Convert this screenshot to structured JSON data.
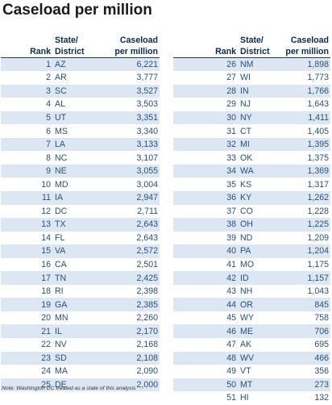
{
  "title": "Caseload per million",
  "headers": {
    "rank": "Rank",
    "state_line1": "State/",
    "state_line2": "District",
    "value_line1": "Caseload",
    "value_line2": "per million"
  },
  "rows_left": [
    {
      "rank": "1",
      "state": "AZ",
      "value": "6,221"
    },
    {
      "rank": "2",
      "state": "AR",
      "value": "3,777"
    },
    {
      "rank": "3",
      "state": "SC",
      "value": "3,527"
    },
    {
      "rank": "4",
      "state": "AL",
      "value": "3,503"
    },
    {
      "rank": "5",
      "state": "UT",
      "value": "3,351"
    },
    {
      "rank": "6",
      "state": "MS",
      "value": "3,340"
    },
    {
      "rank": "7",
      "state": "LA",
      "value": "3,133"
    },
    {
      "rank": "8",
      "state": "NC",
      "value": "3,107"
    },
    {
      "rank": "9",
      "state": "NE",
      "value": "3,055"
    },
    {
      "rank": "10",
      "state": "MD",
      "value": "3,004"
    },
    {
      "rank": "11",
      "state": "IA",
      "value": "2,947"
    },
    {
      "rank": "12",
      "state": "DC",
      "value": "2,711"
    },
    {
      "rank": "13",
      "state": "TX",
      "value": "2,643"
    },
    {
      "rank": "14",
      "state": "FL",
      "value": "2,643"
    },
    {
      "rank": "15",
      "state": "VA",
      "value": "2,572"
    },
    {
      "rank": "16",
      "state": "CA",
      "value": "2,501"
    },
    {
      "rank": "17",
      "state": "TN",
      "value": "2,425"
    },
    {
      "rank": "18",
      "state": "RI",
      "value": "2,398"
    },
    {
      "rank": "19",
      "state": "GA",
      "value": "2,385"
    },
    {
      "rank": "20",
      "state": "MN",
      "value": "2,260"
    },
    {
      "rank": "21",
      "state": "IL",
      "value": "2,170"
    },
    {
      "rank": "22",
      "state": "NV",
      "value": "2,168"
    },
    {
      "rank": "23",
      "state": "SD",
      "value": "2,108"
    },
    {
      "rank": "24",
      "state": "MA",
      "value": "2,090"
    },
    {
      "rank": "25",
      "state": "DE",
      "value": "2,000"
    }
  ],
  "rows_right": [
    {
      "rank": "26",
      "state": "NM",
      "value": "1,898"
    },
    {
      "rank": "27",
      "state": "WI",
      "value": "1,773"
    },
    {
      "rank": "28",
      "state": "IN",
      "value": "1,766"
    },
    {
      "rank": "29",
      "state": "NJ",
      "value": "1,643"
    },
    {
      "rank": "30",
      "state": "NY",
      "value": "1,411"
    },
    {
      "rank": "31",
      "state": "CT",
      "value": "1,405"
    },
    {
      "rank": "32",
      "state": "MI",
      "value": "1,395"
    },
    {
      "rank": "33",
      "state": "OK",
      "value": "1,375"
    },
    {
      "rank": "34",
      "state": "WA",
      "value": "1,369"
    },
    {
      "rank": "35",
      "state": "KS",
      "value": "1,317"
    },
    {
      "rank": "36",
      "state": "KY",
      "value": "1,262"
    },
    {
      "rank": "37",
      "state": "CO",
      "value": "1,228"
    },
    {
      "rank": "38",
      "state": "OH",
      "value": "1,225"
    },
    {
      "rank": "39",
      "state": "ND",
      "value": "1,209"
    },
    {
      "rank": "40",
      "state": "PA",
      "value": "1,204"
    },
    {
      "rank": "41",
      "state": "MO",
      "value": "1,175"
    },
    {
      "rank": "42",
      "state": "ID",
      "value": "1,157"
    },
    {
      "rank": "43",
      "state": "NH",
      "value": "1,043"
    },
    {
      "rank": "44",
      "state": "OR",
      "value": "845"
    },
    {
      "rank": "45",
      "state": "WY",
      "value": "758"
    },
    {
      "rank": "46",
      "state": "ME",
      "value": "706"
    },
    {
      "rank": "47",
      "state": "AK",
      "value": "695"
    },
    {
      "rank": "48",
      "state": "WV",
      "value": "466"
    },
    {
      "rank": "49",
      "state": "VT",
      "value": "356"
    },
    {
      "rank": "50",
      "state": "MT",
      "value": "273"
    },
    {
      "rank": "51",
      "state": "HI",
      "value": "132"
    }
  ],
  "note": "Note: Washington DC treated as a state of this analysis",
  "colors": {
    "title": "#1a1a1a",
    "header_text": "#0d2a4a",
    "cell_text": "#2b4f78",
    "stripe": "#dde7f3",
    "header_rule": "#1f3b5e"
  }
}
